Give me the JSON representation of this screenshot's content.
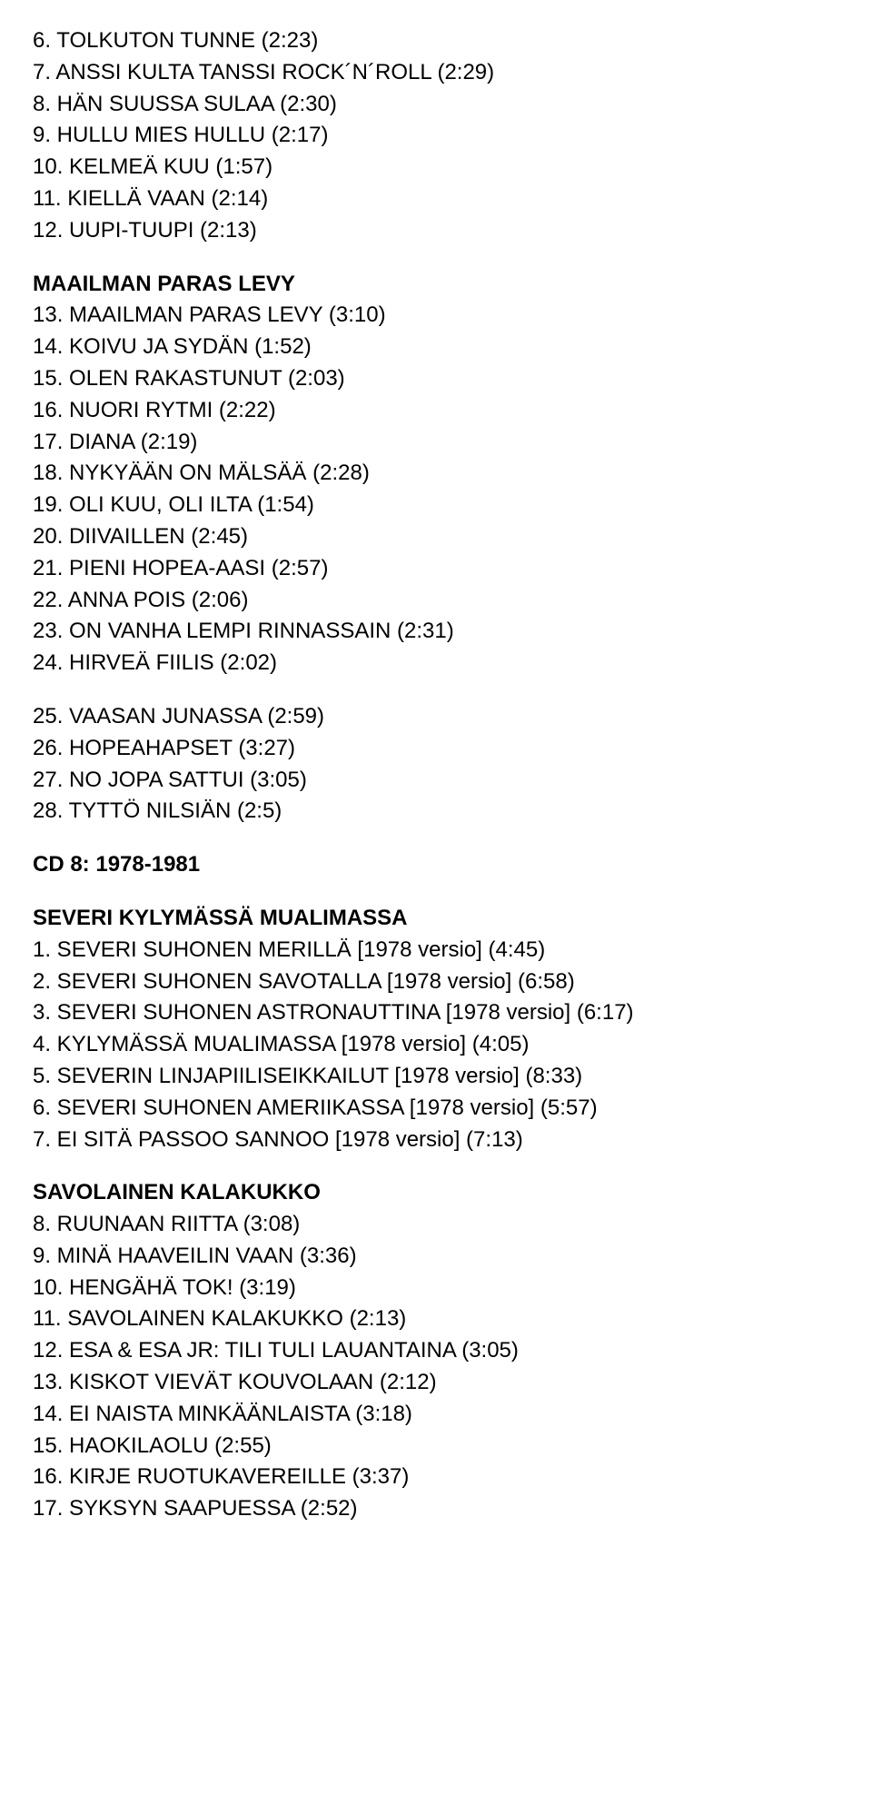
{
  "block1": {
    "items": [
      "6. TOLKUTON TUNNE (2:23)",
      "7. ANSSI KULTA TANSSI ROCK´N´ROLL (2:29)",
      "8. HÄN SUUSSA SULAA (2:30)",
      "9. HULLU MIES HULLU (2:17)",
      "10. KELMEÄ KUU (1:57)",
      "11. KIELLÄ VAAN (2:14)",
      "12. UUPI-TUUPI (2:13)"
    ]
  },
  "heading1": "MAAILMAN PARAS LEVY",
  "block2": {
    "items": [
      "13. MAAILMAN PARAS LEVY (3:10)",
      "14. KOIVU JA SYDÄN (1:52)",
      "15. OLEN RAKASTUNUT (2:03)",
      "16. NUORI RYTMI (2:22)",
      "17. DIANA (2:19)",
      "18. NYKYÄÄN ON MÄLSÄÄ (2:28)",
      "19. OLI KUU, OLI ILTA (1:54)",
      "20. DIIVAILLEN (2:45)",
      "21. PIENI HOPEA-AASI (2:57)",
      "22. ANNA POIS (2:06)",
      "23. ON VANHA LEMPI RINNASSAIN (2:31)",
      "24. HIRVEÄ FIILIS (2:02)"
    ]
  },
  "block3": {
    "items": [
      "25. VAASAN JUNASSA (2:59)",
      "26. HOPEAHAPSET (3:27)",
      "27. NO JOPA SATTUI (3:05)",
      "28. TYTTÖ NILSIÄN (2:5)"
    ]
  },
  "heading2": "CD 8: 1978-1981",
  "heading3": "SEVERI KYLYMÄSSÄ MUALIMASSA",
  "block4": {
    "items": [
      "1. SEVERI SUHONEN MERILLÄ [1978 versio] (4:45)",
      "2. SEVERI SUHONEN SAVOTALLA [1978 versio] (6:58)",
      "3. SEVERI SUHONEN ASTRONAUTTINA [1978 versio] (6:17)",
      "4. KYLYMÄSSÄ MUALIMASSA [1978 versio] (4:05)",
      "5. SEVERIN LINJAPIILISEIKKAILUT [1978 versio] (8:33)",
      "6. SEVERI SUHONEN AMERIIKASSA [1978 versio] (5:57)",
      "7. EI SITÄ PASSOO SANNOO [1978 versio] (7:13)"
    ]
  },
  "heading4": "SAVOLAINEN KALAKUKKO",
  "block5": {
    "items": [
      "8. RUUNAAN RIITTA (3:08)",
      "9. MINÄ HAAVEILIN VAAN (3:36)",
      "10. HENGÄHÄ TOK! (3:19)",
      "11. SAVOLAINEN KALAKUKKO (2:13)",
      "12. ESA & ESA JR: TILI TULI LAUANTAINA (3:05)",
      "13. KISKOT VIEVÄT KOUVOLAAN (2:12)",
      "14. EI NAISTA MINKÄÄNLAISTA (3:18)",
      "15. HAOKILAOLU (2:55)",
      "16. KIRJE RUOTUKAVEREILLE (3:37)",
      "17. SYKSYN SAAPUESSA (2:52)"
    ]
  }
}
